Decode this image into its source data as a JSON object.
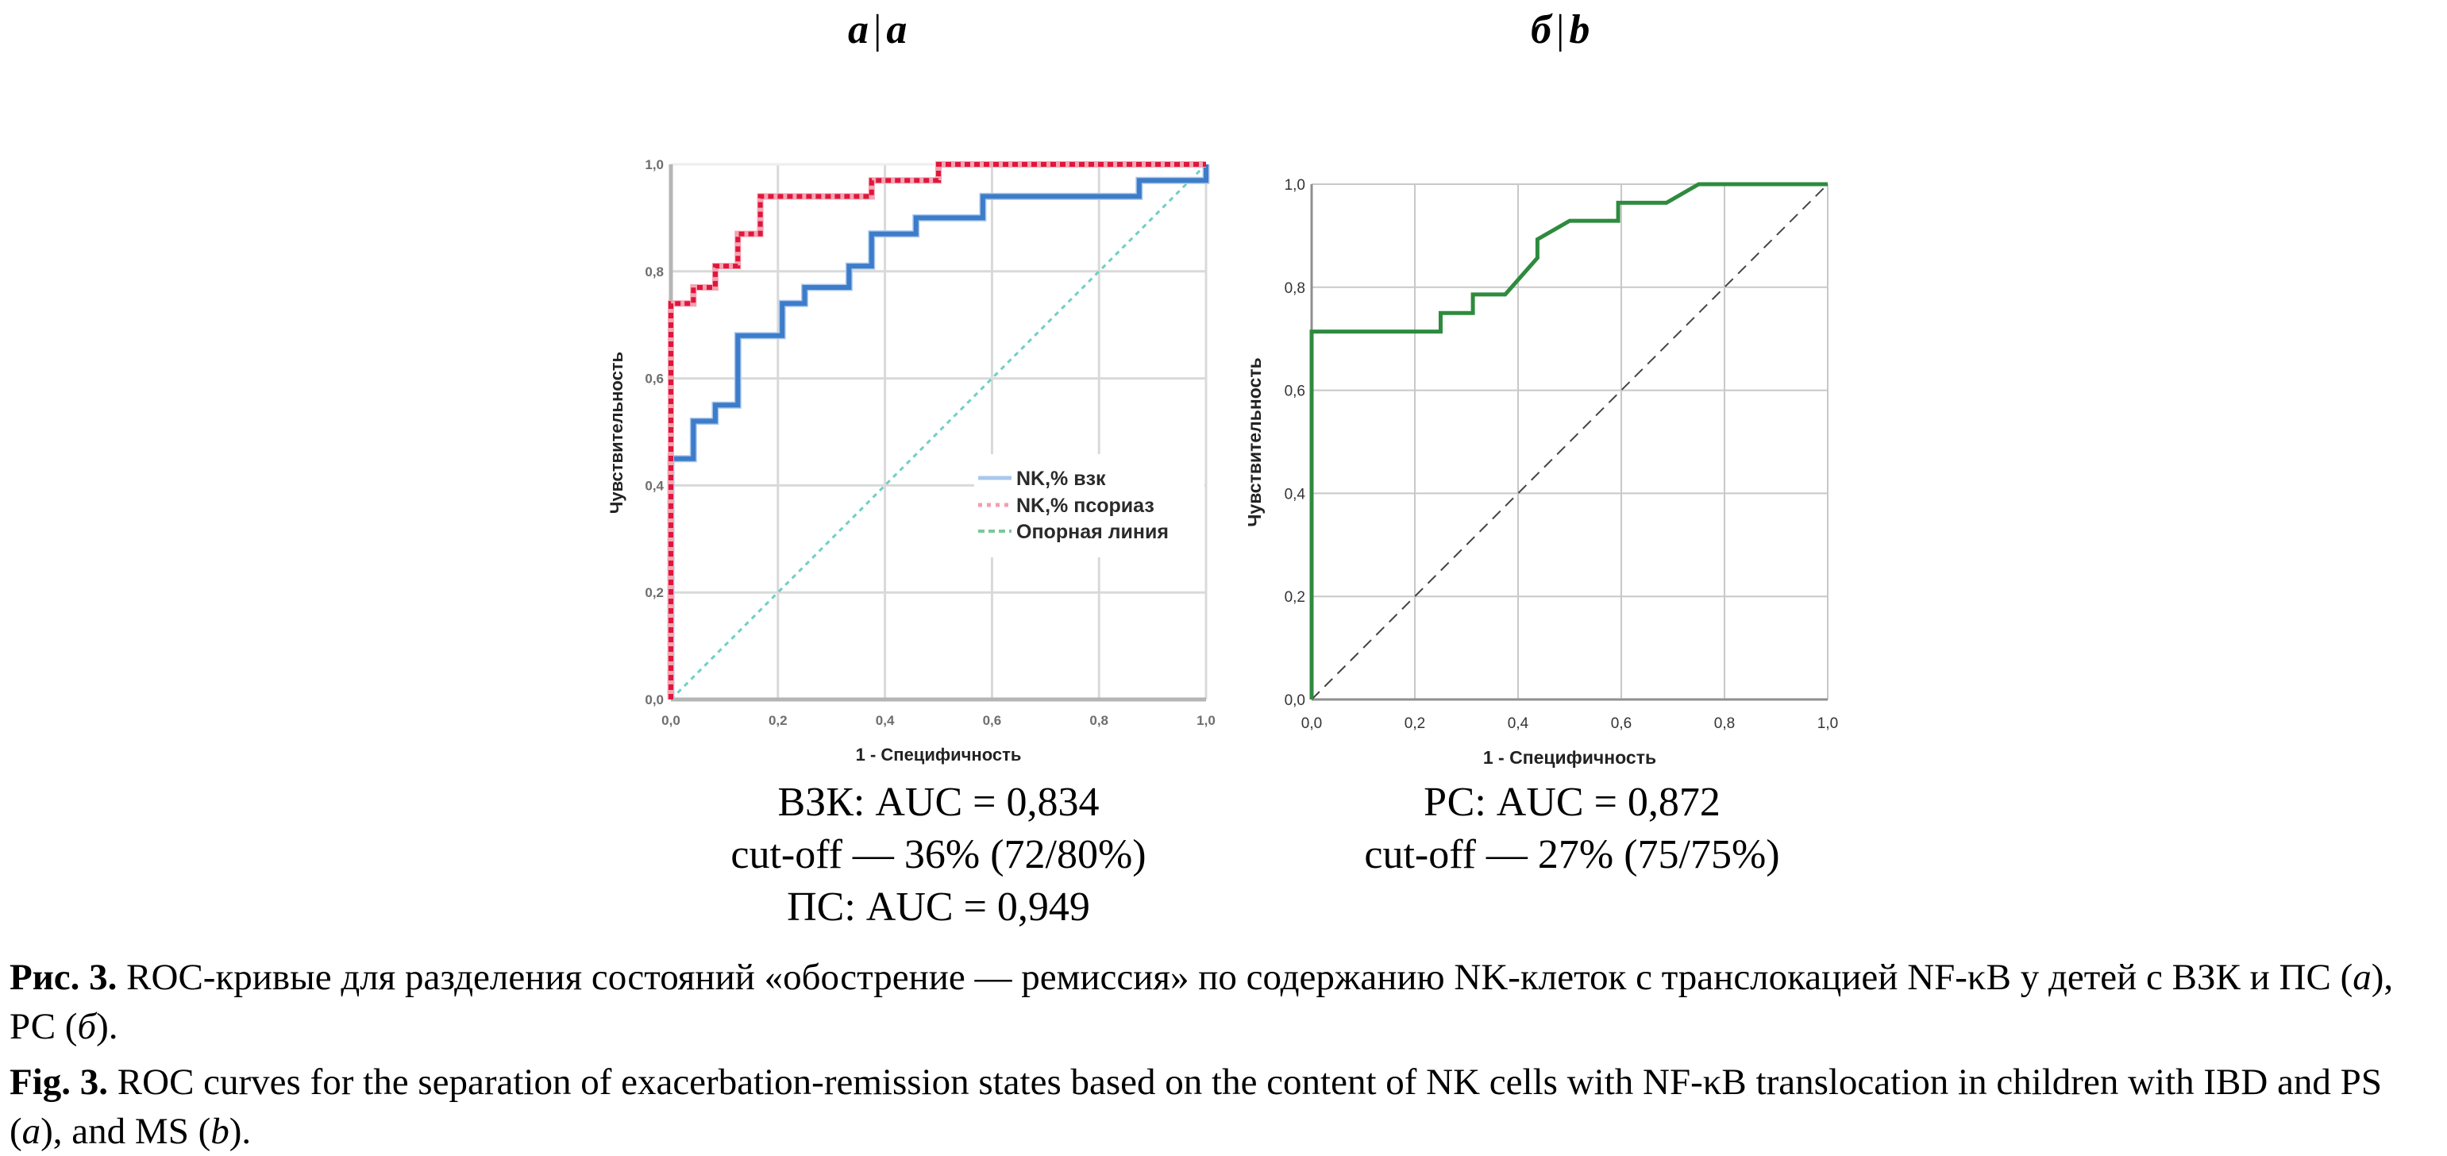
{
  "panels": [
    {
      "label_ru": "а",
      "sep": "|",
      "label_en": "a"
    },
    {
      "label_ru": "б",
      "sep": "|",
      "label_en": "b"
    }
  ],
  "chart_data": [
    {
      "type": "line",
      "panel": "a",
      "xlabel": "1 - Специфичность",
      "ylabel": "Чувствительность",
      "xlim": [
        0,
        1
      ],
      "ylim": [
        0,
        1
      ],
      "xticks": [
        "0,0",
        "0,2",
        "0,4",
        "0,6",
        "0,8",
        "1,0"
      ],
      "yticks": [
        "0,0",
        "0,2",
        "0,4",
        "0,6",
        "0,8",
        "1,0"
      ],
      "grid": true,
      "legend_position": "center-right",
      "series": [
        {
          "name": "NK,% взк",
          "color": "#3d7cc9",
          "style": "solid",
          "x": [
            0,
            0,
            0.042,
            0.042,
            0.083,
            0.083,
            0.125,
            0.125,
            0.208,
            0.208,
            0.25,
            0.25,
            0.333,
            0.333,
            0.375,
            0.375,
            0.458,
            0.458,
            0.583,
            0.583,
            0.875,
            0.875,
            1.0,
            1.0
          ],
          "y": [
            0,
            0.45,
            0.45,
            0.52,
            0.52,
            0.55,
            0.55,
            0.68,
            0.68,
            0.74,
            0.74,
            0.77,
            0.77,
            0.81,
            0.81,
            0.87,
            0.87,
            0.9,
            0.9,
            0.94,
            0.94,
            0.97,
            0.97,
            1.0
          ]
        },
        {
          "name": "NK,% псориаз",
          "color": "#e0163a",
          "style": "dotted",
          "x": [
            0,
            0,
            0.042,
            0.042,
            0.083,
            0.083,
            0.125,
            0.125,
            0.167,
            0.167,
            0.375,
            0.375,
            0.5,
            0.5,
            1.0
          ],
          "y": [
            0,
            0.74,
            0.74,
            0.77,
            0.77,
            0.81,
            0.81,
            0.87,
            0.87,
            0.94,
            0.94,
            0.97,
            0.97,
            1.0,
            1.0
          ]
        },
        {
          "name": "Опорная линия",
          "color": "#6fcfc4",
          "legend_color": "#7cc79a",
          "style": "dashed",
          "x": [
            0,
            1
          ],
          "y": [
            0,
            1
          ]
        }
      ]
    },
    {
      "type": "line",
      "panel": "b",
      "xlabel": "1 - Специфичность",
      "ylabel": "Чувствительность",
      "xlim": [
        0,
        1
      ],
      "ylim": [
        0,
        1
      ],
      "xticks": [
        "0,0",
        "0,2",
        "0,4",
        "0,6",
        "0,8",
        "1,0"
      ],
      "yticks": [
        "0,0",
        "0,2",
        "0,4",
        "0,6",
        "0,8",
        "1,0"
      ],
      "grid": true,
      "series": [
        {
          "name": "РС",
          "color": "#2e8b3e",
          "style": "solid",
          "x": [
            0,
            0,
            0.25,
            0.25,
            0.3125,
            0.3125,
            0.375,
            0.4375,
            0.4375,
            0.5,
            0.594,
            0.594,
            0.6875,
            0.75,
            1.0
          ],
          "y": [
            0,
            0.714,
            0.714,
            0.75,
            0.75,
            0.786,
            0.786,
            0.857,
            0.893,
            0.929,
            0.929,
            0.964,
            0.964,
            1.0,
            1.0
          ]
        },
        {
          "name": "reference",
          "color": "#444444",
          "style": "dashed",
          "x": [
            0,
            1
          ],
          "y": [
            0,
            1
          ]
        }
      ]
    }
  ],
  "stats": {
    "a": [
      "ВЗК: AUC = 0,834",
      "cut-off — 36% (72/80%)",
      "ПС: AUC = 0,949"
    ],
    "b": [
      "РС: AUC = 0,872",
      "cut-off — 27% (75/75%)"
    ]
  },
  "caption": {
    "ru_label": "Рис. 3.",
    "ru_text_1": " ROC-кривые для разделения состояний «обострение — ремиссия» по содержанию NK-клеток с транслокацией NF-κB у детей с ВЗК и ПС (",
    "ru_a": "а",
    "ru_text_2": "), РС (",
    "ru_b": "б",
    "ru_text_3": ").",
    "en_label": "Fig. 3.",
    "en_text_1": " ROC curves for the separation of exacerbation-remission states based on the content of NK cells with NF-κB translocation in children with IBD and PS (",
    "en_a": "a",
    "en_text_2": "), and MS (",
    "en_b": "b",
    "en_text_3": ")."
  }
}
